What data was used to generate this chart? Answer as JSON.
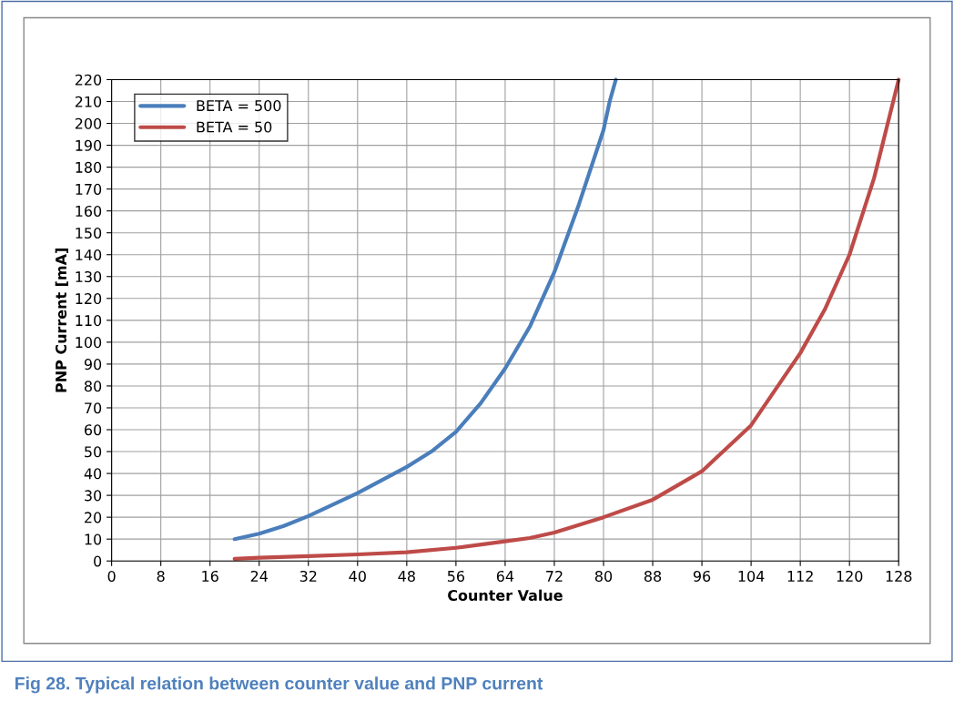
{
  "chart_data": {
    "type": "line",
    "xlabel": "Counter Value",
    "ylabel": "PNP Current [mA]",
    "annotations": [
      "Fig 28. Typical relation between counter value and PNP current"
    ],
    "series": [
      {
        "name": "BETA = 500",
        "color": "#4a7ebb",
        "x": [
          20,
          24,
          28,
          32,
          40,
          48,
          52,
          56,
          60,
          64,
          68,
          72,
          76,
          80,
          81,
          82
        ],
        "values": [
          10,
          12.5,
          16,
          20.5,
          31,
          43,
          50,
          59,
          72,
          88,
          107,
          132,
          163,
          197,
          210,
          220
        ]
      },
      {
        "name": "BETA = 50",
        "color": "#be4b48",
        "x": [
          20,
          24,
          32,
          40,
          48,
          56,
          64,
          68,
          72,
          80,
          88,
          96,
          104,
          112,
          116,
          120,
          124,
          128
        ],
        "values": [
          1,
          1.5,
          2.2,
          3,
          4,
          6,
          9,
          10.5,
          13,
          20,
          28,
          41,
          62,
          95,
          115,
          140,
          175,
          220
        ]
      }
    ],
    "xlim": [
      0,
      128
    ],
    "xticks": [
      0,
      8,
      16,
      24,
      32,
      40,
      48,
      56,
      64,
      72,
      80,
      88,
      96,
      104,
      112,
      120,
      128
    ],
    "ylim": [
      0,
      220
    ],
    "yticks": [
      0,
      10,
      20,
      30,
      40,
      50,
      60,
      70,
      80,
      90,
      100,
      110,
      120,
      130,
      140,
      150,
      160,
      170,
      180,
      190,
      200,
      210,
      220
    ],
    "grid": true,
    "legend": "top left",
    "marker": "none",
    "line_style": "solid"
  }
}
